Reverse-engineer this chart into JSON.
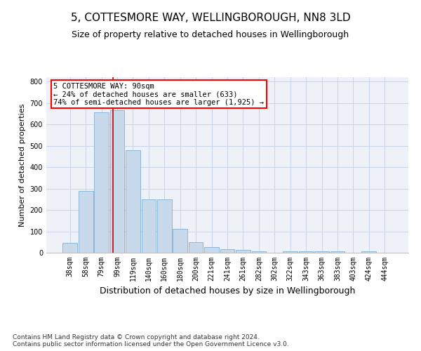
{
  "title": "5, COTTESMORE WAY, WELLINGBOROUGH, NN8 3LD",
  "subtitle": "Size of property relative to detached houses in Wellingborough",
  "xlabel": "Distribution of detached houses by size in Wellingborough",
  "ylabel": "Number of detached properties",
  "categories": [
    "38sqm",
    "58sqm",
    "79sqm",
    "99sqm",
    "119sqm",
    "140sqm",
    "160sqm",
    "180sqm",
    "200sqm",
    "221sqm",
    "241sqm",
    "261sqm",
    "282sqm",
    "302sqm",
    "322sqm",
    "343sqm",
    "363sqm",
    "383sqm",
    "403sqm",
    "424sqm",
    "444sqm"
  ],
  "values": [
    45,
    290,
    655,
    665,
    478,
    250,
    250,
    113,
    48,
    25,
    15,
    13,
    8,
    0,
    8,
    8,
    5,
    5,
    0,
    8,
    0
  ],
  "bar_color": "#c9d9ec",
  "bar_edge_color": "#7fafd4",
  "annotation_box_text": "5 COTTESMORE WAY: 90sqm\n← 24% of detached houses are smaller (633)\n74% of semi-detached houses are larger (1,925) →",
  "annotation_box_color": "white",
  "annotation_box_edge_color": "red",
  "red_line_color": "#cc0000",
  "grid_color": "#c8d4e8",
  "background_color": "#eef2f8",
  "footer_text": "Contains HM Land Registry data © Crown copyright and database right 2024.\nContains public sector information licensed under the Open Government Licence v3.0.",
  "ylim": [
    0,
    820
  ],
  "yticks": [
    0,
    100,
    200,
    300,
    400,
    500,
    600,
    700,
    800
  ],
  "title_fontsize": 11,
  "subtitle_fontsize": 9,
  "xlabel_fontsize": 9,
  "ylabel_fontsize": 8,
  "tick_fontsize": 7,
  "annotation_fontsize": 7.5,
  "footer_fontsize": 6.5
}
